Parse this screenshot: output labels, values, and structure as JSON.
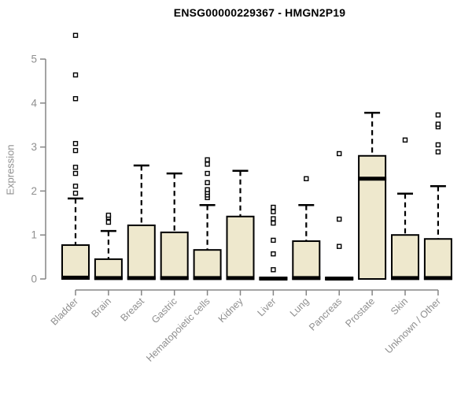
{
  "chart_data": {
    "type": "boxplot",
    "title": "ENSG00000229367 - HMGN2P19",
    "ylabel": "Expression",
    "xlabel": "",
    "ylim": [
      0,
      5.6
    ],
    "yticks": [
      0,
      1,
      2,
      3,
      4,
      5
    ],
    "grid": false,
    "categories": [
      "Bladder",
      "Brain",
      "Breast",
      "Gastric",
      "Hematopoietic cells",
      "Kidney",
      "Liver",
      "Lung",
      "Pancreas",
      "Prostate",
      "Skin",
      "Unknown / Other"
    ],
    "series": [
      {
        "name": "Bladder",
        "q1": 0,
        "median": 0.03,
        "q3": 0.77,
        "whisker_low": 0,
        "whisker_high": 1.83,
        "outliers": [
          1.95,
          2.11,
          2.4,
          2.54,
          2.92,
          3.08,
          4.1,
          4.64,
          5.54
        ]
      },
      {
        "name": "Brain",
        "q1": 0,
        "median": 0.02,
        "q3": 0.45,
        "whisker_low": 0,
        "whisker_high": 1.09,
        "outliers": [
          1.29,
          1.4,
          1.45
        ]
      },
      {
        "name": "Breast",
        "q1": 0,
        "median": 0.02,
        "q3": 1.22,
        "whisker_low": 0,
        "whisker_high": 2.58,
        "outliers": []
      },
      {
        "name": "Gastric",
        "q1": 0,
        "median": 0.02,
        "q3": 1.06,
        "whisker_low": 0,
        "whisker_high": 2.4,
        "outliers": []
      },
      {
        "name": "Hematopoietic cells",
        "q1": 0,
        "median": 0.02,
        "q3": 0.66,
        "whisker_low": 0,
        "whisker_high": 1.68,
        "outliers": [
          1.85,
          1.91,
          1.97,
          2.03,
          2.19,
          2.4,
          2.61,
          2.71
        ]
      },
      {
        "name": "Kidney",
        "q1": 0,
        "median": 0.02,
        "q3": 1.42,
        "whisker_low": 0,
        "whisker_high": 2.46,
        "outliers": []
      },
      {
        "name": "Liver",
        "q1": 0,
        "median": 0.01,
        "q3": 0.02,
        "whisker_low": 0,
        "whisker_high": 0.02,
        "outliers": [
          0.21,
          0.57,
          0.88,
          1.27,
          1.37,
          1.53,
          1.63
        ]
      },
      {
        "name": "Lung",
        "q1": 0,
        "median": 0.02,
        "q3": 0.86,
        "whisker_low": 0,
        "whisker_high": 1.68,
        "outliers": [
          2.28
        ]
      },
      {
        "name": "Pancreas",
        "q1": 0,
        "median": 0.01,
        "q3": 0.02,
        "whisker_low": 0,
        "whisker_high": 0.02,
        "outliers": [
          0.74,
          1.36,
          2.85
        ]
      },
      {
        "name": "Prostate",
        "q1": 0,
        "median": 2.28,
        "q3": 2.8,
        "whisker_low": 0,
        "whisker_high": 3.78,
        "outliers": []
      },
      {
        "name": "Skin",
        "q1": 0,
        "median": 0.02,
        "q3": 1.0,
        "whisker_low": 0,
        "whisker_high": 1.94,
        "outliers": [
          3.16
        ]
      },
      {
        "name": "Unknown / Other",
        "q1": 0,
        "median": 0.02,
        "q3": 0.91,
        "whisker_low": 0,
        "whisker_high": 2.11,
        "outliers": [
          2.89,
          3.05,
          3.46,
          3.52,
          3.73
        ]
      }
    ]
  },
  "colors": {
    "background": "#ffffff",
    "box_fill": "#EEE8CD",
    "box_stroke": "#000000",
    "median": "#000000",
    "whisker": "#000000",
    "outlier_fill": "#ffffff",
    "axis_line": "#858585",
    "axis_text": "#8f8f8f",
    "title": "#000000"
  }
}
